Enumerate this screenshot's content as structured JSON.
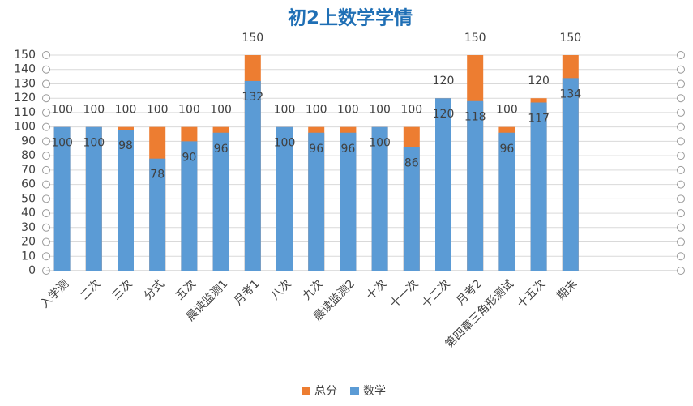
{
  "chart_data": {
    "type": "overlapped_bar",
    "title": "初2上数学学情",
    "categories": [
      "入学测",
      "二次",
      "三次",
      "分式",
      "五次",
      "晨读监测1",
      "月考1",
      "八次",
      "九次",
      "晨读监测2",
      "十次",
      "十一次",
      "十二次",
      "月考2",
      "第四章三角形测试",
      "十五次",
      "期末"
    ],
    "series": [
      {
        "name": "总分",
        "color": "#ed7d31",
        "values": [
          100,
          100,
          100,
          100,
          100,
          100,
          150,
          100,
          100,
          100,
          100,
          100,
          120,
          150,
          100,
          120,
          150
        ]
      },
      {
        "name": "数学",
        "color": "#5b9bd5",
        "values": [
          100,
          100,
          98,
          78,
          90,
          96,
          132,
          100,
          96,
          96,
          100,
          86,
          120,
          118,
          96,
          117,
          134
        ]
      }
    ],
    "ylim": [
      0,
      150
    ],
    "yticks": [
      0,
      10,
      20,
      30,
      40,
      50,
      60,
      70,
      80,
      90,
      100,
      110,
      120,
      130,
      140,
      150
    ],
    "grid": true,
    "legend": "bottom"
  }
}
